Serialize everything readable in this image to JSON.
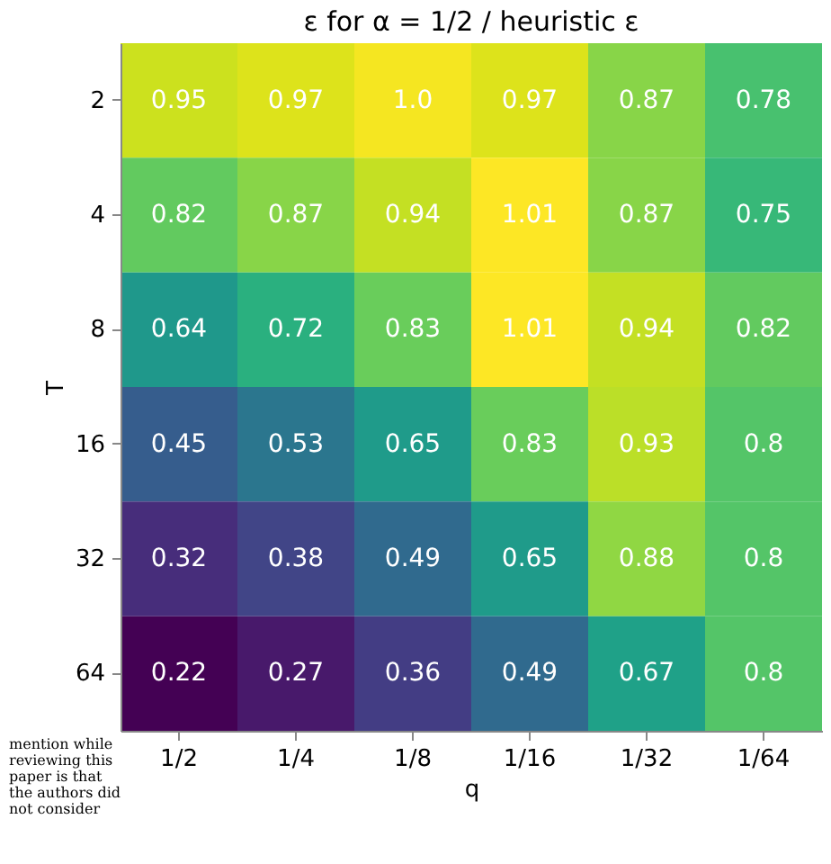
{
  "chart_data": {
    "type": "heatmap",
    "title": "ε for α = 1/2 / heuristic ε",
    "xlabel": "q",
    "ylabel": "T",
    "categories": [
      "1/2",
      "1/4",
      "1/8",
      "1/16",
      "1/32",
      "1/64"
    ],
    "y_categories": [
      "2",
      "4",
      "8",
      "16",
      "32",
      "64"
    ],
    "cells": [
      [
        0.95,
        0.97,
        1.0,
        0.97,
        0.87,
        0.78
      ],
      [
        0.82,
        0.87,
        0.94,
        1.01,
        0.87,
        0.75
      ],
      [
        0.64,
        0.72,
        0.83,
        1.01,
        0.94,
        0.82
      ],
      [
        0.45,
        0.53,
        0.65,
        0.83,
        0.93,
        0.8
      ],
      [
        0.32,
        0.38,
        0.49,
        0.65,
        0.88,
        0.8
      ],
      [
        0.22,
        0.27,
        0.36,
        0.49,
        0.67,
        0.8
      ]
    ],
    "cell_labels": [
      [
        "0.95",
        "0.97",
        "1.0",
        "0.97",
        "0.87",
        "0.78"
      ],
      [
        "0.82",
        "0.87",
        "0.94",
        "1.01",
        "0.87",
        "0.75"
      ],
      [
        "0.64",
        "0.72",
        "0.83",
        "1.01",
        "0.94",
        "0.82"
      ],
      [
        "0.45",
        "0.53",
        "0.65",
        "0.83",
        "0.93",
        "0.8"
      ],
      [
        "0.32",
        "0.38",
        "0.49",
        "0.65",
        "0.88",
        "0.8"
      ],
      [
        "0.22",
        "0.27",
        "0.36",
        "0.49",
        "0.67",
        "0.8"
      ]
    ],
    "annotations": [
      "mention while reviewing this paper is that the authors did not consider"
    ]
  }
}
